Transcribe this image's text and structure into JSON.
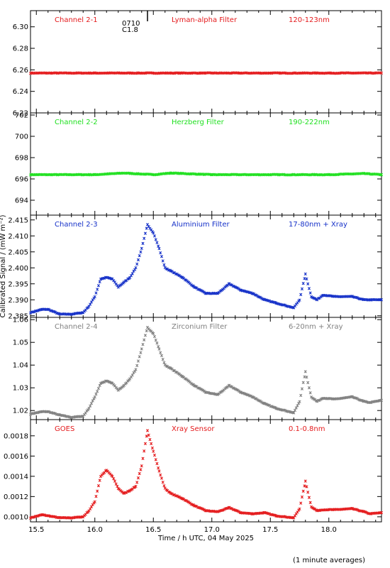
{
  "chart_data": {
    "type": "scatter",
    "xlabel": "Time / h UTC, 04 May 2025",
    "ylabel": "Calibrated Signal / (mW m⁻²)",
    "xlim": [
      15.45,
      18.45
    ],
    "xticks": [
      "15.5",
      "16.0",
      "16.5",
      "17.0",
      "17.5",
      "18.0"
    ],
    "footnote": "(1 minute averages)",
    "flare_marker": {
      "time": 16.45,
      "label_time": "0710",
      "label_class": "C1.8"
    },
    "panels": [
      {
        "channel": "Channel 2-1",
        "filter": "Lyman-alpha Filter",
        "band": "120-123nm",
        "color": "#e41a1c",
        "ylim": [
          6.22,
          6.315
        ],
        "yticks": [
          "6.22",
          "6.24",
          "6.26",
          "6.28",
          "6.30"
        ],
        "series": {
          "x": [
            15.45,
            16.0,
            16.5,
            17.0,
            17.5,
            18.0,
            18.45
          ],
          "y": [
            6.257,
            6.257,
            6.257,
            6.257,
            6.257,
            6.257,
            6.257
          ]
        }
      },
      {
        "channel": "Channel 2-2",
        "filter": "Herzberg Filter",
        "band": "190-222nm",
        "color": "#1fe01f",
        "ylim": [
          692.6,
          702.2
        ],
        "yticks": [
          "694",
          "696",
          "698",
          "700",
          "702"
        ],
        "series": {
          "x": [
            15.45,
            16.0,
            16.25,
            16.5,
            16.65,
            17.0,
            17.5,
            18.0,
            18.3,
            18.45
          ],
          "y": [
            696.4,
            696.4,
            696.55,
            696.4,
            696.55,
            696.4,
            696.4,
            696.4,
            696.5,
            696.4
          ]
        }
      },
      {
        "channel": "Channel 2-3",
        "filter": "Aluminium Filter",
        "band": "17-80nm + Xray",
        "color": "#1530c8",
        "ylim": [
          2.3845,
          2.4165
        ],
        "yticks": [
          "2.385",
          "2.390",
          "2.395",
          "2.400",
          "2.405",
          "2.410",
          "2.415"
        ],
        "series": {
          "x": [
            15.45,
            15.55,
            15.6,
            15.7,
            15.8,
            15.9,
            15.95,
            16.0,
            16.05,
            16.1,
            16.15,
            16.2,
            16.25,
            16.3,
            16.35,
            16.4,
            16.45,
            16.5,
            16.55,
            16.6,
            16.65,
            16.75,
            16.85,
            16.95,
            17.05,
            17.15,
            17.25,
            17.35,
            17.45,
            17.55,
            17.7,
            17.75,
            17.8,
            17.85,
            17.9,
            17.95,
            18.05,
            18.2,
            18.3,
            18.35,
            18.45
          ],
          "y": [
            2.386,
            2.387,
            2.387,
            2.3855,
            2.3855,
            2.386,
            2.388,
            2.391,
            2.3965,
            2.397,
            2.3965,
            2.394,
            2.3955,
            2.397,
            2.4,
            2.406,
            2.4135,
            2.411,
            2.406,
            2.4,
            2.399,
            2.397,
            2.394,
            2.392,
            2.392,
            2.395,
            2.393,
            2.392,
            2.39,
            2.389,
            2.3875,
            2.39,
            2.398,
            2.391,
            2.39,
            2.3915,
            2.391,
            2.391,
            2.39,
            2.39,
            2.39
          ]
        }
      },
      {
        "channel": "Channel 2-4",
        "filter": "Zirconium Filter",
        "band": "6-20nm + Xray",
        "color": "#808080",
        "ylim": [
          1.016,
          1.061
        ],
        "yticks": [
          "1.02",
          "1.03",
          "1.04",
          "1.05",
          "1.06"
        ],
        "series": {
          "x": [
            15.45,
            15.55,
            15.6,
            15.7,
            15.8,
            15.9,
            15.95,
            16.0,
            16.05,
            16.1,
            16.15,
            16.2,
            16.25,
            16.3,
            16.35,
            16.4,
            16.45,
            16.5,
            16.55,
            16.6,
            16.65,
            16.75,
            16.85,
            16.95,
            17.05,
            17.15,
            17.25,
            17.35,
            17.45,
            17.55,
            17.7,
            17.75,
            17.8,
            17.85,
            17.9,
            17.95,
            18.05,
            18.2,
            18.3,
            18.35,
            18.45
          ],
          "y": [
            1.0185,
            1.0195,
            1.0195,
            1.018,
            1.017,
            1.0175,
            1.021,
            1.026,
            1.032,
            1.033,
            1.032,
            1.029,
            1.031,
            1.034,
            1.038,
            1.047,
            1.0565,
            1.054,
            1.047,
            1.04,
            1.0385,
            1.035,
            1.031,
            1.028,
            1.027,
            1.031,
            1.028,
            1.026,
            1.023,
            1.021,
            1.019,
            1.024,
            1.037,
            1.026,
            1.024,
            1.0255,
            1.025,
            1.026,
            1.024,
            1.0235,
            1.0245
          ]
        }
      },
      {
        "channel": "GOES",
        "filter": "Xray Sensor",
        "band": "0.1-0.8nm",
        "color": "#e41a1c",
        "ylim": [
          0.00095,
          0.00196
        ],
        "yticks": [
          "0.0010",
          "0.0012",
          "0.0014",
          "0.0016",
          "0.0018"
        ],
        "series": {
          "x": [
            15.45,
            15.55,
            15.6,
            15.7,
            15.8,
            15.9,
            15.95,
            16.0,
            16.05,
            16.1,
            16.15,
            16.2,
            16.25,
            16.3,
            16.35,
            16.4,
            16.45,
            16.5,
            16.55,
            16.6,
            16.65,
            16.75,
            16.85,
            16.95,
            17.05,
            17.15,
            17.25,
            17.35,
            17.45,
            17.55,
            17.7,
            17.75,
            17.8,
            17.85,
            17.9,
            17.95,
            18.05,
            18.2,
            18.3,
            18.35,
            18.45
          ],
          "y": [
            0.00099,
            0.00102,
            0.00101,
            0.00099,
            0.00099,
            0.001,
            0.00106,
            0.00115,
            0.0014,
            0.00146,
            0.0014,
            0.00128,
            0.00123,
            0.00126,
            0.0013,
            0.0015,
            0.00185,
            0.00165,
            0.00145,
            0.00128,
            0.00123,
            0.00118,
            0.00111,
            0.00106,
            0.00105,
            0.00109,
            0.00104,
            0.00103,
            0.00104,
            0.00101,
            0.00099,
            0.00108,
            0.00135,
            0.0011,
            0.00106,
            0.00107,
            0.00107,
            0.00108,
            0.00105,
            0.00103,
            0.00104
          ]
        }
      }
    ]
  }
}
